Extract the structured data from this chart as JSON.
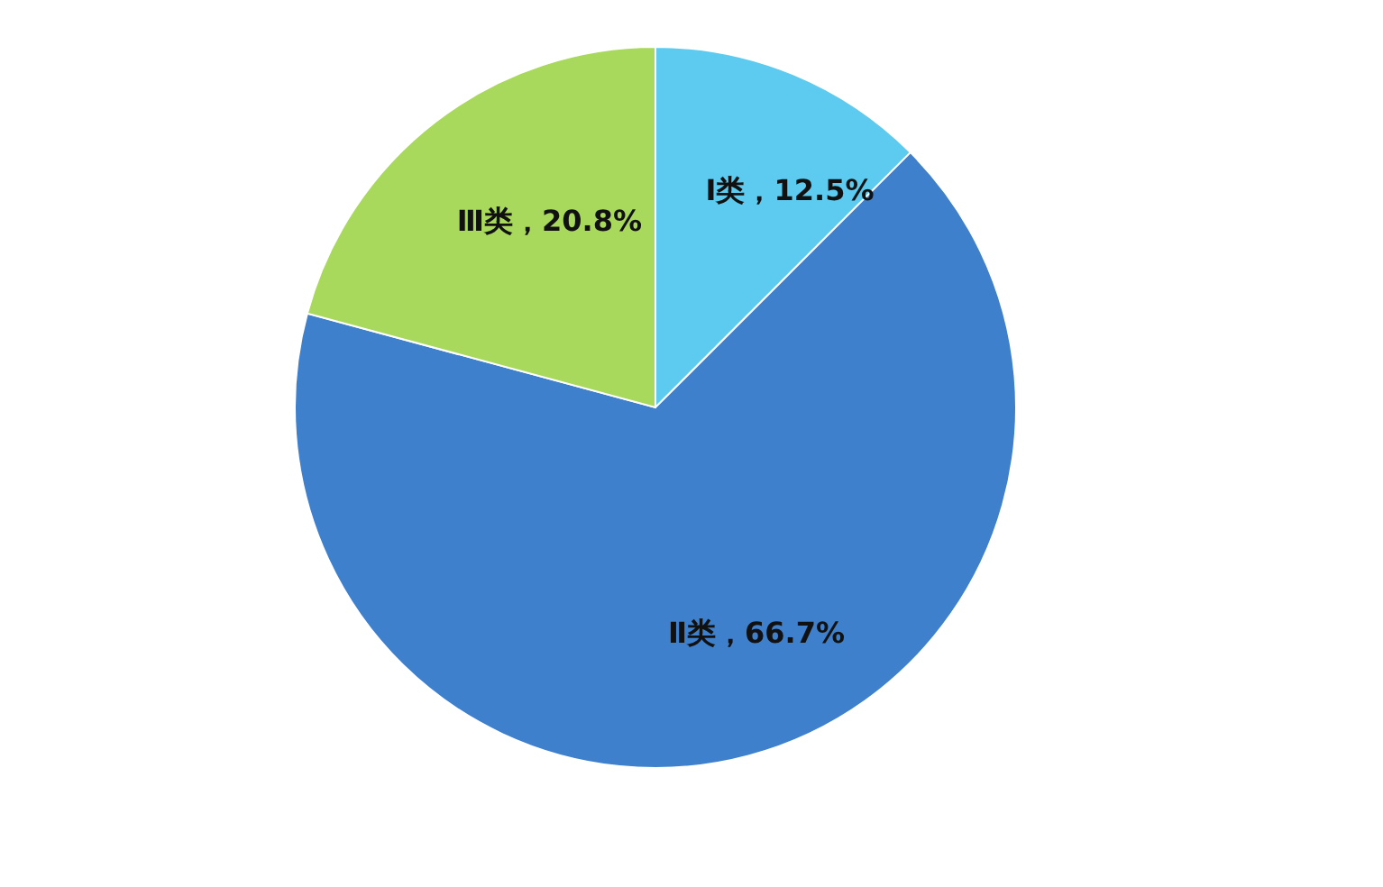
{
  "chart_data": {
    "type": "pie",
    "categories": [
      "Ⅰ类",
      "Ⅱ类",
      "Ⅲ类"
    ],
    "values": [
      12.5,
      66.7,
      20.8
    ],
    "colors": [
      "#5ccbef",
      "#3f80cc",
      "#a8d85c"
    ],
    "value_labels": [
      "，12.5%",
      "，66.7%",
      "，20.8%"
    ],
    "legend": false
  }
}
